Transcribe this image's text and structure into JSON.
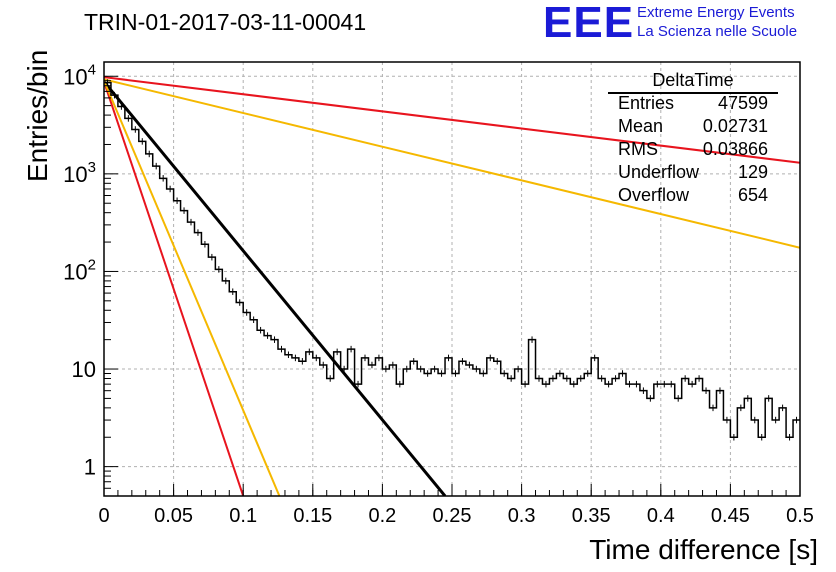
{
  "header": {
    "title": "TRIN-01-2017-03-11-00041",
    "logo_text": "EEE",
    "logo_line1": "Extreme Energy Events",
    "logo_line2": "La Scienza nelle Scuole"
  },
  "stats_box": {
    "title": "DeltaTime",
    "rows": [
      {
        "key": "Entries",
        "value": "47599"
      },
      {
        "key": "Mean",
        "value": "0.02731"
      },
      {
        "key": "RMS",
        "value": "0.03866"
      },
      {
        "key": "Underflow",
        "value": "129"
      },
      {
        "key": "Overflow",
        "value": "654"
      }
    ]
  },
  "colors": {
    "histogram": "#000000",
    "fit": "#000000",
    "red": "#e8141e",
    "orange": "#f5b800",
    "grid": "#b0b0b0",
    "logo": "#1b1bd6"
  },
  "chart_data": {
    "type": "line",
    "title": "TRIN-01-2017-03-11-00041",
    "xlabel": "Time difference [s]",
    "ylabel": "Entries/bin",
    "xlim": [
      0,
      0.5
    ],
    "ylim": [
      0.5,
      14000
    ],
    "yscale": "log",
    "grid": true,
    "x_ticks": [
      "0",
      "0.05",
      "0.1",
      "0.15",
      "0.2",
      "0.25",
      "0.3",
      "0.35",
      "0.4",
      "0.45",
      "0.5"
    ],
    "x_tick_values": [
      0,
      0.05,
      0.1,
      0.15,
      0.2,
      0.25,
      0.3,
      0.35,
      0.4,
      0.45,
      0.5
    ],
    "y_ticks": [
      {
        "value": 1,
        "base": "1",
        "exp": ""
      },
      {
        "value": 10,
        "base": "10",
        "exp": ""
      },
      {
        "value": 100,
        "base": "10",
        "exp": "2"
      },
      {
        "value": 1000,
        "base": "10",
        "exp": "3"
      },
      {
        "value": 10000,
        "base": "10",
        "exp": "4"
      }
    ],
    "histogram": {
      "name": "DeltaTime",
      "bin_width": 0.005,
      "x_start": 0.0,
      "values": [
        8600,
        6400,
        4900,
        3700,
        2850,
        2150,
        1600,
        1200,
        900,
        700,
        530,
        420,
        320,
        250,
        190,
        140,
        105,
        80,
        62,
        48,
        38,
        32,
        25,
        22,
        20,
        16,
        14,
        13,
        12,
        15,
        13,
        11,
        8,
        15,
        10,
        16,
        7,
        13,
        11,
        13,
        10,
        11,
        7,
        10,
        12,
        10,
        9,
        10,
        9,
        13,
        9,
        12,
        11,
        10,
        9,
        13,
        12,
        9,
        8,
        10,
        7,
        20,
        8,
        7,
        8,
        9,
        8,
        7,
        8,
        9,
        13,
        8,
        7,
        8,
        9,
        7,
        7,
        6,
        5,
        7,
        7,
        7,
        5,
        8,
        7,
        8,
        6,
        4,
        6,
        3,
        2,
        4,
        5,
        3,
        2,
        5,
        3,
        4,
        2,
        3
      ]
    },
    "series": [
      {
        "color": "#000000",
        "x": [
          0,
          0.245
        ],
        "y": [
          8800,
          0.5
        ]
      },
      {
        "color": "#e8141e",
        "x": [
          0,
          0.5
        ],
        "y": [
          9800,
          1300
        ]
      },
      {
        "color": "#f5b800",
        "x": [
          0,
          0.5
        ],
        "y": [
          9300,
          175
        ]
      },
      {
        "color": "#e8141e",
        "x": [
          0,
          0.1
        ],
        "y": [
          8800,
          0.5
        ]
      },
      {
        "color": "#f5b800",
        "x": [
          0,
          0.126
        ],
        "y": [
          9000,
          0.5
        ]
      }
    ]
  },
  "axes": {
    "xlabel": "Time difference [s]",
    "ylabel": "Entries/bin"
  }
}
